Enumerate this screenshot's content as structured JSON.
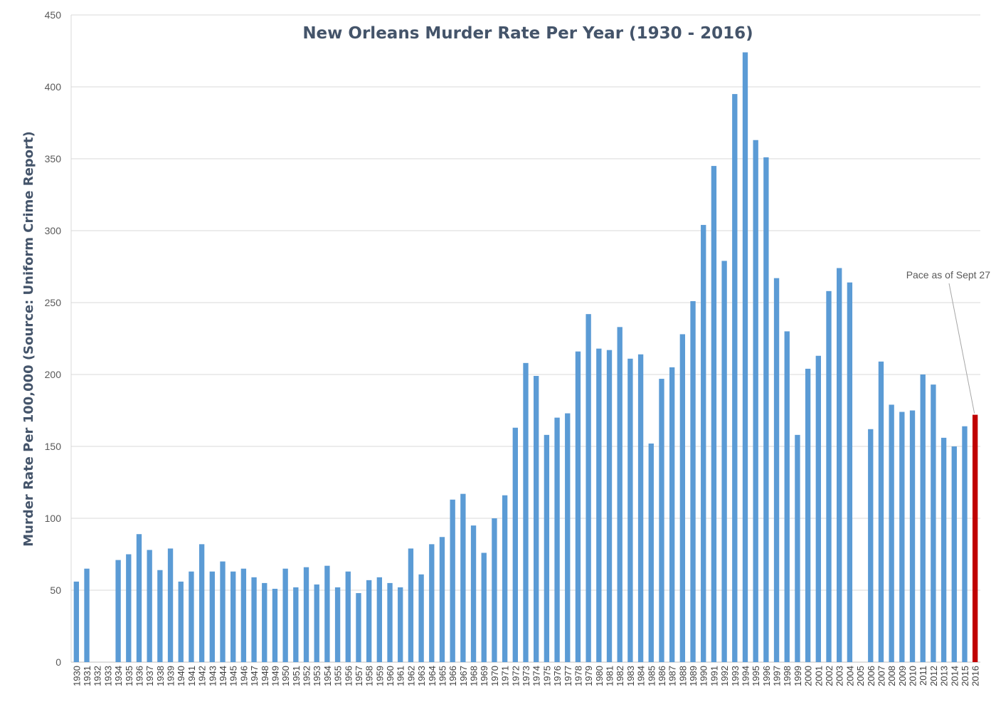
{
  "chart_data": {
    "type": "bar",
    "title": "New Orleans Murder Rate Per Year (1930 - 2016)",
    "xlabel": "",
    "ylabel": "Murder Rate Per 100,000 (Source: Uniform Crime Report)",
    "ylim": [
      0,
      450
    ],
    "yticks": [
      0,
      50,
      100,
      150,
      200,
      250,
      300,
      350,
      400,
      450
    ],
    "grid": true,
    "categories": [
      "1930",
      "1931",
      "1932",
      "1933",
      "1934",
      "1935",
      "1936",
      "1937",
      "1938",
      "1939",
      "1940",
      "1941",
      "1942",
      "1943",
      "1944",
      "1945",
      "1946",
      "1947",
      "1948",
      "1949",
      "1950",
      "1951",
      "1952",
      "1953",
      "1954",
      "1955",
      "1956",
      "1957",
      "1958",
      "1959",
      "1960",
      "1961",
      "1962",
      "1963",
      "1964",
      "1965",
      "1966",
      "1967",
      "1968",
      "1969",
      "1970",
      "1971",
      "1972",
      "1973",
      "1974",
      "1975",
      "1976",
      "1977",
      "1978",
      "1979",
      "1980",
      "1981",
      "1982",
      "1983",
      "1984",
      "1985",
      "1986",
      "1987",
      "1988",
      "1989",
      "1990",
      "1991",
      "1992",
      "1993",
      "1994",
      "1995",
      "1996",
      "1997",
      "1998",
      "1999",
      "2000",
      "2001",
      "2002",
      "2003",
      "2004",
      "2005",
      "2006",
      "2007",
      "2008",
      "2009",
      "2010",
      "2011",
      "2012",
      "2013",
      "2014",
      "2015",
      "2016"
    ],
    "values": [
      56,
      65,
      null,
      null,
      71,
      75,
      89,
      78,
      64,
      79,
      56,
      63,
      82,
      63,
      70,
      63,
      65,
      59,
      55,
      51,
      65,
      52,
      66,
      54,
      67,
      52,
      63,
      48,
      57,
      59,
      55,
      52,
      79,
      61,
      82,
      87,
      113,
      117,
      95,
      76,
      100,
      116,
      163,
      208,
      199,
      158,
      170,
      173,
      216,
      242,
      218,
      217,
      233,
      211,
      214,
      152,
      197,
      205,
      228,
      251,
      304,
      345,
      279,
      395,
      424,
      363,
      351,
      267,
      230,
      158,
      204,
      213,
      258,
      274,
      264,
      null,
      162,
      209,
      179,
      174,
      175,
      200,
      193,
      156,
      150,
      164,
      172
    ],
    "colors": {
      "bar": "#5b9bd5",
      "highlight": "#c00000",
      "grid": "#d9d9d9"
    },
    "highlight_category": "2016",
    "annotation": {
      "text": "Pace as of Sept 27",
      "target": "2016"
    }
  }
}
